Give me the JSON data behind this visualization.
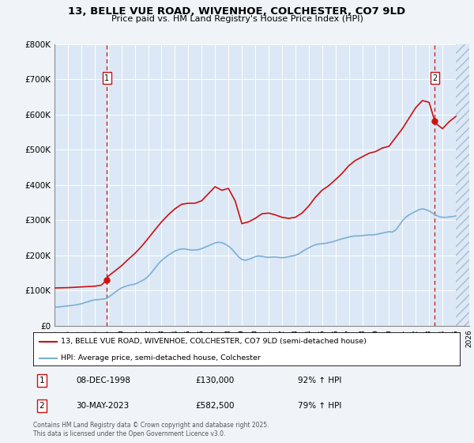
{
  "title": "13, BELLE VUE ROAD, WIVENHOE, COLCHESTER, CO7 9LD",
  "subtitle": "Price paid vs. HM Land Registry's House Price Index (HPI)",
  "background_color": "#f0f4f8",
  "plot_bg_color": "#dce8f5",
  "hpi_line_color": "#7bafd4",
  "price_line_color": "#cc1111",
  "marker_color": "#cc1111",
  "vline_color": "#cc1111",
  "ylim": [
    0,
    800000
  ],
  "yticks": [
    0,
    100000,
    200000,
    300000,
    400000,
    500000,
    600000,
    700000,
    800000
  ],
  "ytick_labels": [
    "£0",
    "£100K",
    "£200K",
    "£300K",
    "£400K",
    "£500K",
    "£600K",
    "£700K",
    "£800K"
  ],
  "xmin": 1995.0,
  "xmax": 2026.0,
  "hatch_start": 2025.0,
  "transaction1_year": 1998.917,
  "transaction1_price": 130000,
  "transaction2_year": 2023.413,
  "transaction2_price": 582500,
  "legend_line1": "13, BELLE VUE ROAD, WIVENHOE, COLCHESTER, CO7 9LD (semi-detached house)",
  "legend_line2": "HPI: Average price, semi-detached house, Colchester",
  "annotation1_date": "08-DEC-1998",
  "annotation1_price": "£130,000",
  "annotation1_hpi": "92% ↑ HPI",
  "annotation2_date": "30-MAY-2023",
  "annotation2_price": "£582,500",
  "annotation2_hpi": "79% ↑ HPI",
  "footer": "Contains HM Land Registry data © Crown copyright and database right 2025.\nThis data is licensed under the Open Government Licence v3.0.",
  "hpi_data_x": [
    1995.0,
    1995.25,
    1995.5,
    1995.75,
    1996.0,
    1996.25,
    1996.5,
    1996.75,
    1997.0,
    1997.25,
    1997.5,
    1997.75,
    1998.0,
    1998.25,
    1998.5,
    1998.75,
    1999.0,
    1999.25,
    1999.5,
    1999.75,
    2000.0,
    2000.25,
    2000.5,
    2000.75,
    2001.0,
    2001.25,
    2001.5,
    2001.75,
    2002.0,
    2002.25,
    2002.5,
    2002.75,
    2003.0,
    2003.25,
    2003.5,
    2003.75,
    2004.0,
    2004.25,
    2004.5,
    2004.75,
    2005.0,
    2005.25,
    2005.5,
    2005.75,
    2006.0,
    2006.25,
    2006.5,
    2006.75,
    2007.0,
    2007.25,
    2007.5,
    2007.75,
    2008.0,
    2008.25,
    2008.5,
    2008.75,
    2009.0,
    2009.25,
    2009.5,
    2009.75,
    2010.0,
    2010.25,
    2010.5,
    2010.75,
    2011.0,
    2011.25,
    2011.5,
    2011.75,
    2012.0,
    2012.25,
    2012.5,
    2012.75,
    2013.0,
    2013.25,
    2013.5,
    2013.75,
    2014.0,
    2014.25,
    2014.5,
    2014.75,
    2015.0,
    2015.25,
    2015.5,
    2015.75,
    2016.0,
    2016.25,
    2016.5,
    2016.75,
    2017.0,
    2017.25,
    2017.5,
    2017.75,
    2018.0,
    2018.25,
    2018.5,
    2018.75,
    2019.0,
    2019.25,
    2019.5,
    2019.75,
    2020.0,
    2020.25,
    2020.5,
    2020.75,
    2021.0,
    2021.25,
    2021.5,
    2021.75,
    2022.0,
    2022.25,
    2022.5,
    2022.75,
    2023.0,
    2023.25,
    2023.5,
    2023.75,
    2024.0,
    2024.25,
    2024.5,
    2024.75,
    2025.0
  ],
  "hpi_data_y": [
    52000,
    53000,
    54000,
    55000,
    56000,
    57000,
    58500,
    60000,
    62000,
    65000,
    68000,
    71000,
    73000,
    74000,
    75000,
    76000,
    80000,
    87000,
    94000,
    101000,
    107000,
    111000,
    114000,
    116000,
    118000,
    122000,
    127000,
    132000,
    140000,
    151000,
    163000,
    175000,
    185000,
    193000,
    200000,
    206000,
    212000,
    216000,
    218000,
    218000,
    216000,
    215000,
    215000,
    216000,
    219000,
    223000,
    227000,
    231000,
    235000,
    237000,
    236000,
    232000,
    226000,
    218000,
    207000,
    196000,
    188000,
    186000,
    188000,
    192000,
    196000,
    198000,
    197000,
    195000,
    194000,
    195000,
    195000,
    194000,
    193000,
    194000,
    196000,
    198000,
    200000,
    204000,
    210000,
    216000,
    221000,
    226000,
    230000,
    232000,
    233000,
    234000,
    236000,
    238000,
    241000,
    244000,
    247000,
    249000,
    252000,
    254000,
    255000,
    255000,
    256000,
    257000,
    258000,
    258000,
    259000,
    261000,
    263000,
    265000,
    267000,
    266000,
    272000,
    284000,
    298000,
    308000,
    315000,
    320000,
    325000,
    330000,
    332000,
    330000,
    326000,
    320000,
    314000,
    310000,
    308000,
    308000,
    309000,
    310000,
    312000
  ],
  "price_data_x": [
    1995.0,
    1995.5,
    1996.0,
    1996.5,
    1997.0,
    1997.5,
    1998.0,
    1998.5,
    1998.917,
    1999.0,
    1999.5,
    2000.0,
    2000.5,
    2001.0,
    2001.5,
    2002.0,
    2002.5,
    2003.0,
    2003.5,
    2004.0,
    2004.5,
    2005.0,
    2005.5,
    2006.0,
    2006.5,
    2007.0,
    2007.5,
    2008.0,
    2008.5,
    2009.0,
    2009.5,
    2010.0,
    2010.5,
    2011.0,
    2011.5,
    2012.0,
    2012.5,
    2013.0,
    2013.5,
    2014.0,
    2014.5,
    2015.0,
    2015.5,
    2016.0,
    2016.5,
    2017.0,
    2017.5,
    2018.0,
    2018.5,
    2019.0,
    2019.5,
    2020.0,
    2020.5,
    2021.0,
    2021.5,
    2022.0,
    2022.5,
    2023.0,
    2023.413,
    2023.5,
    2024.0,
    2024.5,
    2025.0
  ],
  "price_data_y": [
    107000,
    107500,
    108000,
    109000,
    110000,
    111000,
    112000,
    115000,
    130000,
    140000,
    155000,
    170000,
    188000,
    205000,
    225000,
    248000,
    272000,
    295000,
    315000,
    332000,
    345000,
    348000,
    348000,
    355000,
    375000,
    395000,
    385000,
    390000,
    355000,
    290000,
    295000,
    305000,
    318000,
    320000,
    315000,
    308000,
    305000,
    308000,
    320000,
    340000,
    365000,
    385000,
    398000,
    415000,
    433000,
    455000,
    470000,
    480000,
    490000,
    495000,
    505000,
    510000,
    535000,
    560000,
    590000,
    620000,
    640000,
    635000,
    582500,
    575000,
    560000,
    580000,
    595000
  ]
}
